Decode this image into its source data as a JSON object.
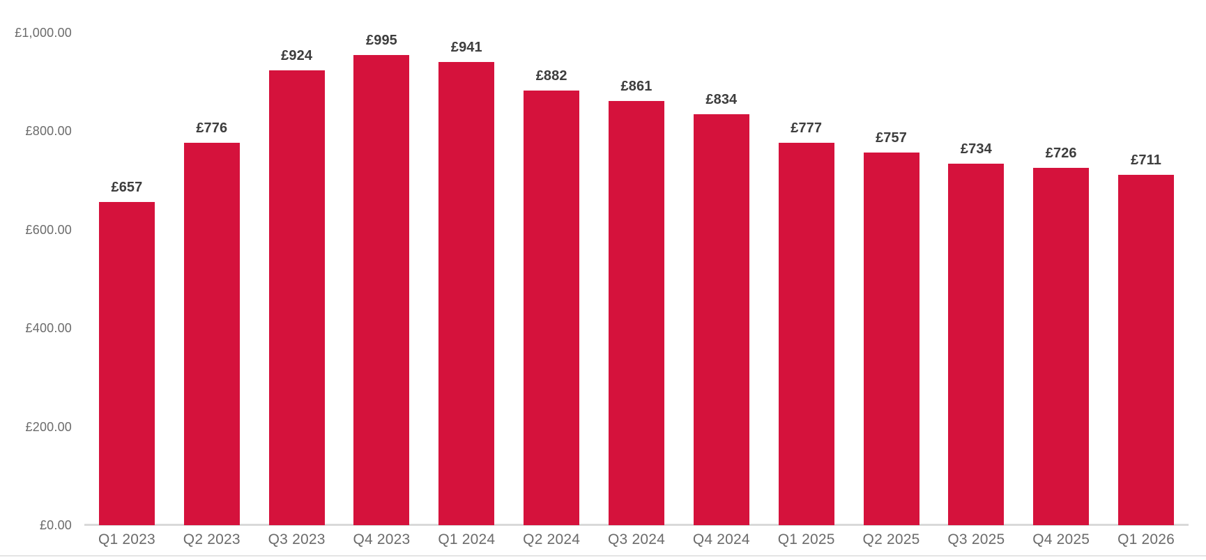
{
  "chart_data": {
    "type": "bar",
    "title": "",
    "xlabel": "",
    "ylabel": "",
    "categories": [
      "Q1 2023",
      "Q2 2023",
      "Q3 2023",
      "Q4 2023",
      "Q1 2024",
      "Q2 2024",
      "Q3 2024",
      "Q4 2024",
      "Q1 2025",
      "Q2 2025",
      "Q3 2025",
      "Q4 2025",
      "Q1 2026"
    ],
    "values": [
      657,
      776,
      924,
      995,
      941,
      882,
      861,
      834,
      777,
      757,
      734,
      726,
      711
    ],
    "value_labels": [
      "£657",
      "£776",
      "£924",
      "£995",
      "£941",
      "£882",
      "£861",
      "£834",
      "£777",
      "£757",
      "£734",
      "£726",
      "£711"
    ],
    "y_ticks": [
      {
        "value": 0,
        "label": "£0.00"
      },
      {
        "value": 200,
        "label": "£200.00"
      },
      {
        "value": 400,
        "label": "£400.00"
      },
      {
        "value": 600,
        "label": "£600.00"
      },
      {
        "value": 800,
        "label": "£800.00"
      },
      {
        "value": 1000,
        "label": "£1,000.00"
      }
    ],
    "ylim": [
      0,
      1000
    ],
    "grid": false,
    "legend_position": "none",
    "currency_prefix": "£",
    "bar_color": "#d5123c",
    "data_label_color": "#3d3d3d",
    "axis_label_color": "#6b6b6b",
    "axis_line_color": "#d9d9d9",
    "bottom_line_color": "#e4e4e4",
    "background_color": "#ffffff"
  }
}
